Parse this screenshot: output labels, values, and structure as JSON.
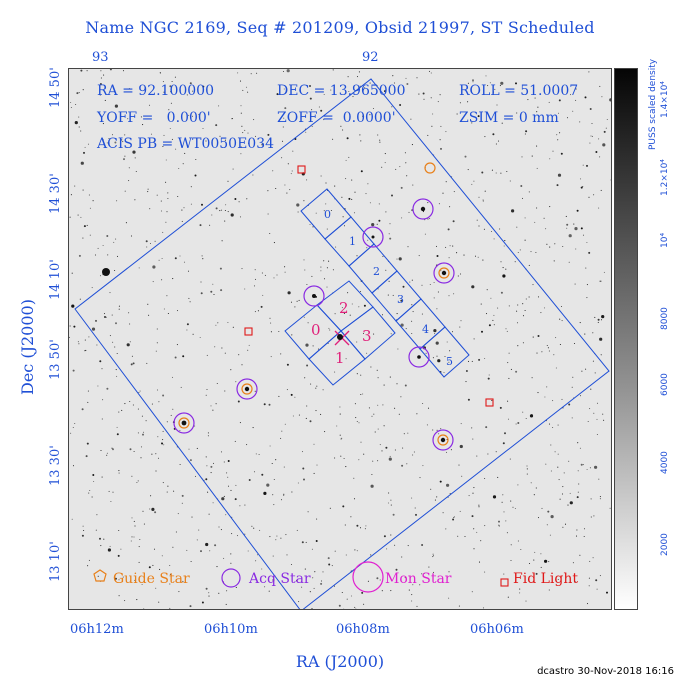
{
  "title": "Name NGC 2169, Seq # 201209, Obsid 21997, ST Scheduled",
  "top_axis": {
    "left_label": "93",
    "mid_label": "92"
  },
  "info": {
    "ra": "RA = 92.100000",
    "dec": "DEC = 13.965000",
    "roll": "ROLL = 51.0007",
    "yoff": "YOFF =   0.000'",
    "zoff": "ZOFF =  0.0000'",
    "zsim": "ZSIM = 0 mm",
    "acis": "ACIS PB = WT0050E034"
  },
  "chips": {
    "s_array": [
      "0",
      "1",
      "2",
      "3",
      "4",
      "5"
    ],
    "i_array": [
      "0",
      "1",
      "2",
      "3"
    ]
  },
  "y_ticks": [
    "14 50'",
    "14 30'",
    "14 10'",
    "13 50'",
    "13 30'",
    "13 10'"
  ],
  "x_ticks": [
    "06h12m",
    "06h10m",
    "06h08m",
    "06h06m"
  ],
  "y_axis_label": "Dec (J2000)",
  "x_axis_label": "RA (J2000)",
  "legend": {
    "guide": "Guide Star",
    "acq": "Acq Star",
    "mon": "Mon Star",
    "fid": "Fid Light"
  },
  "colorbar": {
    "label": "PUSS scaled density",
    "ticks": [
      "2000",
      "4000",
      "6000",
      "8000",
      "10⁴",
      "1.2×10⁴",
      "1.4×10⁴"
    ]
  },
  "footer": "dcastro 30-Nov-2018 16:16",
  "colors": {
    "blue": "#1f4fd6",
    "guide": "#e8801a",
    "acq": "#8a2be2",
    "mon": "#e020d0",
    "fid": "#e01818",
    "chip_label_i": "#e0207a"
  }
}
